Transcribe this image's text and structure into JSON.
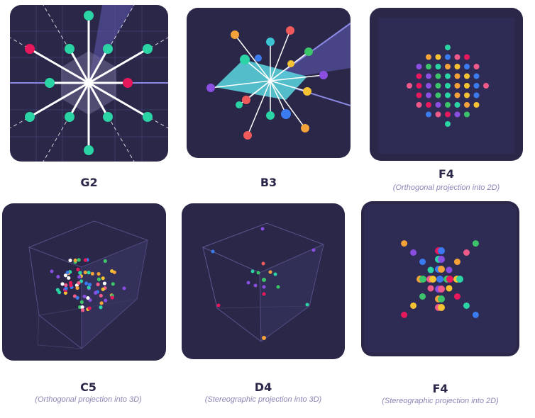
{
  "cards": [
    {
      "title": "G2",
      "subtitle": ""
    },
    {
      "title": "B3",
      "subtitle": ""
    },
    {
      "title": "F4",
      "subtitle": "(Orthogonal projection into 2D)"
    },
    {
      "title": "C5",
      "subtitle": "(Orthogonal projection into 3D)"
    },
    {
      "title": "D4",
      "subtitle": "(Stereographic projection into 3D)"
    },
    {
      "title": "F4",
      "subtitle": "(Stereographic projection into 2D)"
    }
  ],
  "colors": {
    "card_bg": "#2a2748",
    "teal": "#2bd4a4",
    "red": "#e8185c",
    "blue": "#3a7bf0",
    "purple": "#8a4fe0",
    "orange": "#f4a23a",
    "pink": "#f05a8a",
    "green": "#3cc46a",
    "yellow": "#f4c232"
  }
}
